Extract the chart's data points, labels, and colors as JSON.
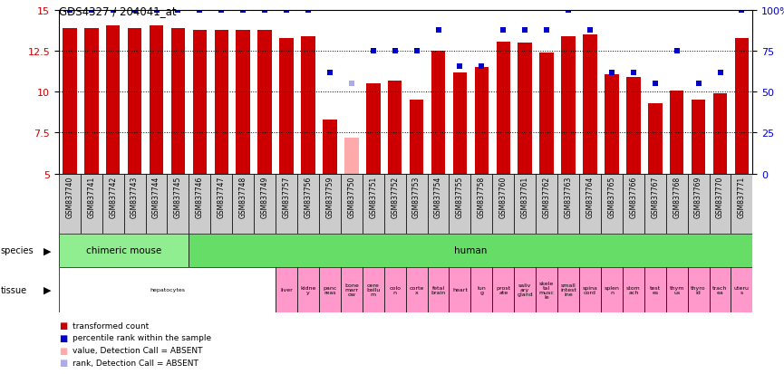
{
  "title": "GDS4327 / 204041_at",
  "samples": [
    "GSM837740",
    "GSM837741",
    "GSM837742",
    "GSM837743",
    "GSM837744",
    "GSM837745",
    "GSM837746",
    "GSM837747",
    "GSM837748",
    "GSM837749",
    "GSM837757",
    "GSM837756",
    "GSM837759",
    "GSM837750",
    "GSM837751",
    "GSM837752",
    "GSM837753",
    "GSM837754",
    "GSM837755",
    "GSM837758",
    "GSM837760",
    "GSM837761",
    "GSM837762",
    "GSM837763",
    "GSM837764",
    "GSM837765",
    "GSM837766",
    "GSM837767",
    "GSM837768",
    "GSM837769",
    "GSM837770",
    "GSM837771"
  ],
  "bar_values": [
    13.9,
    13.9,
    14.1,
    13.9,
    14.1,
    13.9,
    13.8,
    13.8,
    13.8,
    13.8,
    13.3,
    13.4,
    8.3,
    7.2,
    10.5,
    10.7,
    9.5,
    12.5,
    11.2,
    11.5,
    13.1,
    13.0,
    12.4,
    13.4,
    13.5,
    11.1,
    10.9,
    9.3,
    10.1,
    9.5,
    9.9,
    13.3
  ],
  "bar_absent": [
    false,
    false,
    false,
    false,
    false,
    false,
    false,
    false,
    false,
    false,
    false,
    false,
    false,
    true,
    false,
    false,
    false,
    false,
    false,
    false,
    false,
    false,
    false,
    false,
    false,
    false,
    false,
    false,
    false,
    false,
    false,
    false
  ],
  "percentile_values": [
    100,
    100,
    100,
    100,
    100,
    100,
    100,
    100,
    100,
    100,
    100,
    100,
    62,
    55,
    75,
    75,
    75,
    88,
    66,
    66,
    88,
    88,
    88,
    100,
    88,
    62,
    62,
    55,
    75,
    55,
    62,
    100
  ],
  "percentile_absent": [
    false,
    false,
    false,
    false,
    false,
    false,
    false,
    false,
    false,
    false,
    false,
    false,
    false,
    true,
    false,
    false,
    false,
    false,
    false,
    false,
    false,
    false,
    false,
    false,
    false,
    false,
    false,
    false,
    false,
    false,
    false,
    false
  ],
  "species_groups": [
    {
      "label": "chimeric mouse",
      "start": 0,
      "end": 5,
      "color": "#90EE90"
    },
    {
      "label": "human",
      "start": 6,
      "end": 31,
      "color": "#66DD66"
    }
  ],
  "tissue_groups": [
    {
      "label": "hepatocytes",
      "start": 0,
      "end": 9,
      "color": "#ffffff"
    },
    {
      "label": "liver",
      "start": 10,
      "end": 10,
      "color": "#ff99cc"
    },
    {
      "label": "kidne\ny",
      "start": 11,
      "end": 11,
      "color": "#ff99cc"
    },
    {
      "label": "panc\nreas",
      "start": 12,
      "end": 12,
      "color": "#ff99cc"
    },
    {
      "label": "bone\nmarr\now",
      "start": 13,
      "end": 13,
      "color": "#ff99cc"
    },
    {
      "label": "cere\nbellu\nm",
      "start": 14,
      "end": 14,
      "color": "#ff99cc"
    },
    {
      "label": "colo\nn",
      "start": 15,
      "end": 15,
      "color": "#ff99cc"
    },
    {
      "label": "corte\nx",
      "start": 16,
      "end": 16,
      "color": "#ff99cc"
    },
    {
      "label": "fetal\nbrain",
      "start": 17,
      "end": 17,
      "color": "#ff99cc"
    },
    {
      "label": "heart",
      "start": 18,
      "end": 18,
      "color": "#ff99cc"
    },
    {
      "label": "lun\ng",
      "start": 19,
      "end": 19,
      "color": "#ff99cc"
    },
    {
      "label": "prost\nate",
      "start": 20,
      "end": 20,
      "color": "#ff99cc"
    },
    {
      "label": "saliv\nary\ngland",
      "start": 21,
      "end": 21,
      "color": "#ff99cc"
    },
    {
      "label": "skele\ntal\nmusc\nle",
      "start": 22,
      "end": 22,
      "color": "#ff99cc"
    },
    {
      "label": "small\nintest\nine",
      "start": 23,
      "end": 23,
      "color": "#ff99cc"
    },
    {
      "label": "spina\ncord",
      "start": 24,
      "end": 24,
      "color": "#ff99cc"
    },
    {
      "label": "splen\nn",
      "start": 25,
      "end": 25,
      "color": "#ff99cc"
    },
    {
      "label": "stom\nach",
      "start": 26,
      "end": 26,
      "color": "#ff99cc"
    },
    {
      "label": "test\nes",
      "start": 27,
      "end": 27,
      "color": "#ff99cc"
    },
    {
      "label": "thym\nus",
      "start": 28,
      "end": 28,
      "color": "#ff99cc"
    },
    {
      "label": "thyro\nid",
      "start": 29,
      "end": 29,
      "color": "#ff99cc"
    },
    {
      "label": "trach\nea",
      "start": 30,
      "end": 30,
      "color": "#ff99cc"
    },
    {
      "label": "uteru\ns",
      "start": 31,
      "end": 31,
      "color": "#ff99cc"
    }
  ],
  "ylim_left": [
    5,
    15
  ],
  "ylim_right": [
    0,
    100
  ],
  "yticks_left": [
    5,
    7.5,
    10,
    12.5,
    15
  ],
  "yticks_right": [
    0,
    25,
    50,
    75,
    100
  ],
  "bar_color": "#cc0000",
  "bar_color_absent": "#ffaaaa",
  "dot_color": "#0000cc",
  "dot_color_absent": "#aaaaee",
  "sample_bg": "#cccccc",
  "tick_label_color_left": "#cc0000",
  "tick_label_color_right": "#0000cc"
}
